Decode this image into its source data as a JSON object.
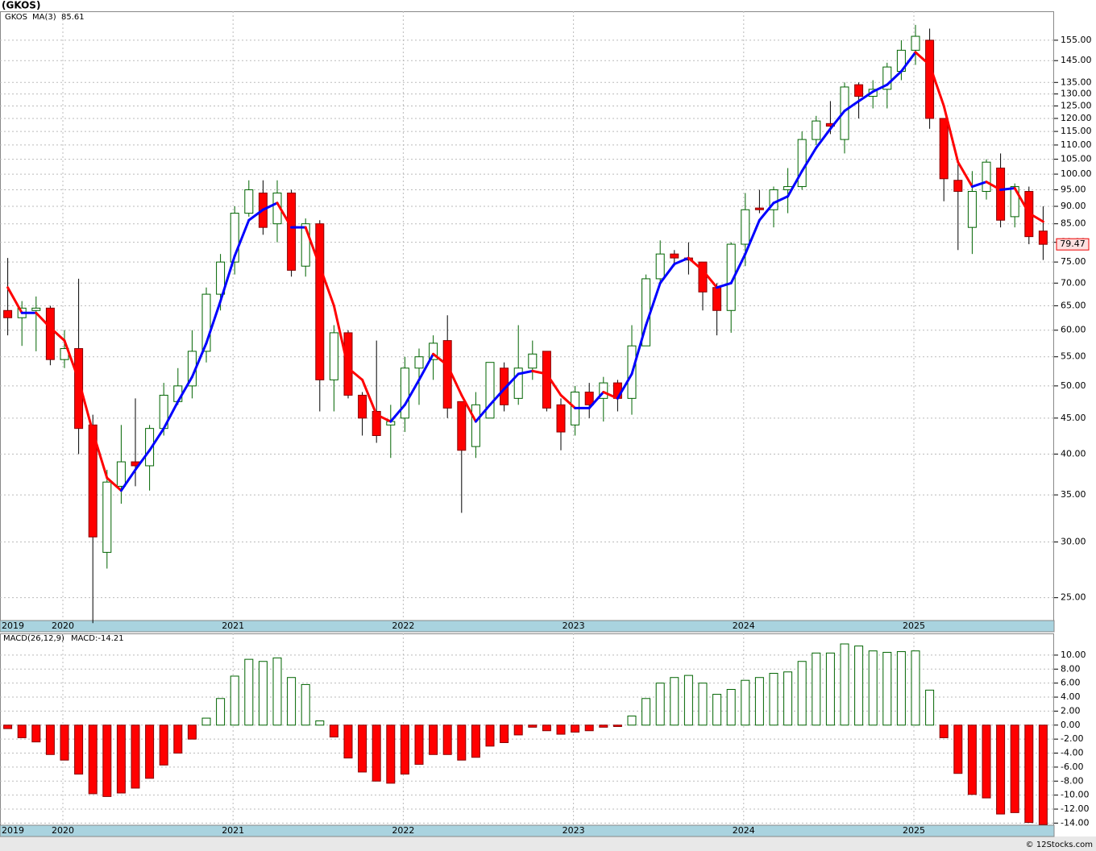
{
  "title": "(GKOS)",
  "copyright": "© 12Stocks.com",
  "chart_data": [
    {
      "type": "candlestick",
      "log_scale": true,
      "grid": true,
      "categories": [
        "2019",
        null,
        null,
        null,
        "2020",
        null,
        null,
        null,
        null,
        null,
        null,
        null,
        null,
        null,
        null,
        null,
        "2021",
        null,
        null,
        null,
        null,
        null,
        null,
        null,
        null,
        null,
        null,
        null,
        "2022",
        null,
        null,
        null,
        null,
        null,
        null,
        null,
        null,
        null,
        null,
        null,
        "2023",
        null,
        null,
        null,
        null,
        null,
        null,
        null,
        null,
        null,
        null,
        null,
        "2024",
        null,
        null,
        null,
        null,
        null,
        null,
        null,
        null,
        null,
        null,
        null,
        "2025",
        null,
        null,
        null,
        null,
        null,
        null,
        null,
        null,
        null
      ],
      "ylim": [
        23.2,
        170.4
      ],
      "yticks": [
        {
          "value": 25,
          "label": "25.00"
        },
        {
          "value": 30,
          "label": "30.00"
        },
        {
          "value": 35,
          "label": "35.00"
        },
        {
          "value": 40,
          "label": "40.00"
        },
        {
          "value": 45,
          "label": "45.00"
        },
        {
          "value": 50,
          "label": "50.00"
        },
        {
          "value": 55,
          "label": "55.00"
        },
        {
          "value": 60,
          "label": "60.00"
        },
        {
          "value": 65,
          "label": "65.00"
        },
        {
          "value": 70,
          "label": "70.00"
        },
        {
          "value": 75,
          "label": "75.00"
        },
        {
          "value": 80,
          "label": "80.00"
        },
        {
          "value": 85,
          "label": "85.00"
        },
        {
          "value": 90,
          "label": "90.00"
        },
        {
          "value": 95,
          "label": "95.00"
        },
        {
          "value": 100,
          "label": "100.00"
        },
        {
          "value": 105,
          "label": "105.00"
        },
        {
          "value": 110,
          "label": "110.00"
        },
        {
          "value": 115,
          "label": "115.00"
        },
        {
          "value": 120,
          "label": "120.00"
        },
        {
          "value": 125,
          "label": "125.00"
        },
        {
          "value": 130,
          "label": "130.00"
        },
        {
          "value": 135,
          "label": "135.00"
        },
        {
          "value": 145,
          "label": "145.00"
        },
        {
          "value": 155,
          "label": "155.00"
        }
      ],
      "series": [
        {
          "name": "GKOS",
          "up_color": "#006400",
          "down_color": "#ff0000",
          "open": [
            64,
            62.5,
            64,
            64.5,
            54.5,
            56.5,
            44,
            29,
            36,
            39,
            38.5,
            43.5,
            47.5,
            50,
            56,
            67.5,
            75,
            88,
            94,
            85,
            94,
            74,
            85,
            51,
            59.5,
            48.5,
            46,
            44,
            45,
            53,
            54.5,
            58,
            47.5,
            41,
            45,
            53,
            48,
            53,
            56,
            47,
            44,
            49,
            48,
            50.5,
            48,
            57,
            71,
            77,
            76,
            75,
            69,
            64,
            79.5,
            89.5,
            89,
            95,
            96,
            112,
            118,
            112,
            134,
            129,
            132,
            140,
            150,
            155,
            120,
            98,
            84,
            94.5,
            102,
            87,
            94.5,
            83
          ],
          "high": [
            76,
            66,
            67,
            65,
            60,
            71,
            45.5,
            38,
            44,
            48,
            44,
            50.5,
            53,
            60,
            69,
            77,
            90,
            98,
            98,
            98,
            95,
            86.5,
            86,
            61,
            60,
            49,
            58,
            47,
            55,
            56.5,
            59,
            63,
            47.5,
            49,
            54,
            54,
            61,
            58,
            56,
            48,
            50,
            50.5,
            51.5,
            51,
            61,
            72,
            80.5,
            78,
            80,
            75,
            70,
            80,
            94,
            95,
            96,
            102,
            115,
            121,
            127,
            135,
            135,
            136,
            144,
            155,
            163,
            161,
            120,
            104,
            101,
            105,
            107,
            97,
            96,
            90
          ],
          "low": [
            59,
            57,
            56,
            53.5,
            53,
            40,
            23,
            27.5,
            34,
            36,
            35.5,
            42.5,
            47,
            48,
            54,
            64,
            72,
            87,
            82,
            80,
            71.5,
            71.5,
            46,
            46,
            48,
            42.5,
            41.5,
            39.5,
            43,
            47,
            51,
            45,
            33,
            39.5,
            45,
            46,
            47,
            51,
            46,
            40.5,
            42.5,
            45,
            44.5,
            46,
            45.5,
            57,
            70,
            74,
            72,
            64,
            59,
            59.5,
            74,
            88,
            84,
            88,
            95,
            110,
            114,
            107,
            120,
            124,
            124,
            136,
            143,
            116,
            91.5,
            78,
            77,
            92,
            84,
            84,
            79.5,
            75.5
          ],
          "close": [
            62.5,
            64.5,
            64.5,
            54.5,
            56.5,
            43.5,
            30.5,
            36.5,
            39,
            38.5,
            43.5,
            48.5,
            50,
            56,
            67.5,
            75,
            88,
            95,
            84,
            94,
            73,
            85,
            51,
            59.5,
            48.5,
            45,
            42.5,
            44.5,
            53,
            55,
            57.5,
            46.5,
            40.5,
            47,
            54,
            47,
            53,
            55.5,
            46.5,
            43,
            49,
            47,
            50.5,
            48,
            57,
            71,
            77,
            76,
            75.5,
            68,
            64,
            79.5,
            89,
            89,
            95,
            96,
            112,
            119,
            117,
            133,
            129,
            132,
            142,
            150,
            157,
            120,
            98.5,
            94.5,
            94.5,
            104,
            86,
            96,
            81.5,
            79.47
          ]
        },
        {
          "name": "MA(3)",
          "up_color": "#0000ff",
          "down_color": "#ff0000",
          "values": [
            69,
            63.5,
            63.5,
            60.5,
            58,
            51,
            43,
            37,
            35.5,
            38,
            40.5,
            43.5,
            47.5,
            51.5,
            57.5,
            66,
            76.5,
            86,
            89,
            91,
            84,
            84,
            74,
            65,
            53,
            51,
            45.5,
            44.5,
            47,
            51,
            55.5,
            53.5,
            48.5,
            44.5,
            47,
            49.5,
            52,
            52.5,
            52,
            48.5,
            46.5,
            46.5,
            49,
            48,
            52,
            61,
            70,
            74.5,
            76,
            73,
            69,
            70,
            77,
            86,
            91,
            93,
            101,
            109,
            116,
            123,
            127,
            131,
            134,
            140,
            149,
            143,
            125,
            104,
            96,
            97.5,
            95,
            95.5,
            88,
            85.61
          ]
        }
      ]
    },
    {
      "type": "bar",
      "title": "MACD(26,12,9)",
      "grid": true,
      "categories": [
        "2019",
        null,
        null,
        null,
        "2020",
        null,
        null,
        null,
        null,
        null,
        null,
        null,
        null,
        null,
        null,
        null,
        "2021",
        null,
        null,
        null,
        null,
        null,
        null,
        null,
        null,
        null,
        null,
        null,
        "2022",
        null,
        null,
        null,
        null,
        null,
        null,
        null,
        null,
        null,
        null,
        null,
        "2023",
        null,
        null,
        null,
        null,
        null,
        null,
        null,
        null,
        null,
        null,
        null,
        "2024",
        null,
        null,
        null,
        null,
        null,
        null,
        null,
        null,
        null,
        null,
        null,
        "2025",
        null,
        null,
        null,
        null,
        null,
        null,
        null,
        null,
        null
      ],
      "ylim": [
        -14.3,
        13.1
      ],
      "yticks": [
        {
          "value": -14,
          "label": "-14.00"
        },
        {
          "value": -12,
          "label": "-12.00"
        },
        {
          "value": -10,
          "label": "-10.00"
        },
        {
          "value": -8,
          "label": "-8.00"
        },
        {
          "value": -6,
          "label": "-6.00"
        },
        {
          "value": -4,
          "label": "-4.00"
        },
        {
          "value": -2,
          "label": "-2.00"
        },
        {
          "value": 0,
          "label": "0.00"
        },
        {
          "value": 2,
          "label": "2.00"
        },
        {
          "value": 4,
          "label": "4.00"
        },
        {
          "value": 6,
          "label": "6.00"
        },
        {
          "value": 8,
          "label": "8.00"
        },
        {
          "value": 10,
          "label": "10.00"
        }
      ],
      "series": [
        {
          "name": "MACD:",
          "up_color": "#006400",
          "down_color": "#ff0000",
          "values": [
            -0.5,
            -1.8,
            -2.4,
            -4.2,
            -5.0,
            -7.0,
            -9.8,
            -10.2,
            -9.7,
            -9.0,
            -7.6,
            -5.7,
            -4.0,
            -2.0,
            1.0,
            3.8,
            7.0,
            9.4,
            9.1,
            9.6,
            6.8,
            5.8,
            0.6,
            -1.7,
            -4.7,
            -6.7,
            -8.0,
            -8.3,
            -7.0,
            -5.6,
            -4.2,
            -4.2,
            -5.0,
            -4.6,
            -3.0,
            -2.5,
            -1.4,
            -0.3,
            -0.8,
            -1.3,
            -1.0,
            -0.8,
            -0.3,
            -0.2,
            1.3,
            3.8,
            6.0,
            6.8,
            7.1,
            6.0,
            4.4,
            5.1,
            6.4,
            6.8,
            7.4,
            7.6,
            9.1,
            10.3,
            10.3,
            11.6,
            11.3,
            10.6,
            10.4,
            10.5,
            10.6,
            5.0,
            -1.8,
            -6.9,
            -9.9,
            -10.4,
            -12.7,
            -12.5,
            -13.9,
            -14.21
          ]
        }
      ]
    }
  ]
}
